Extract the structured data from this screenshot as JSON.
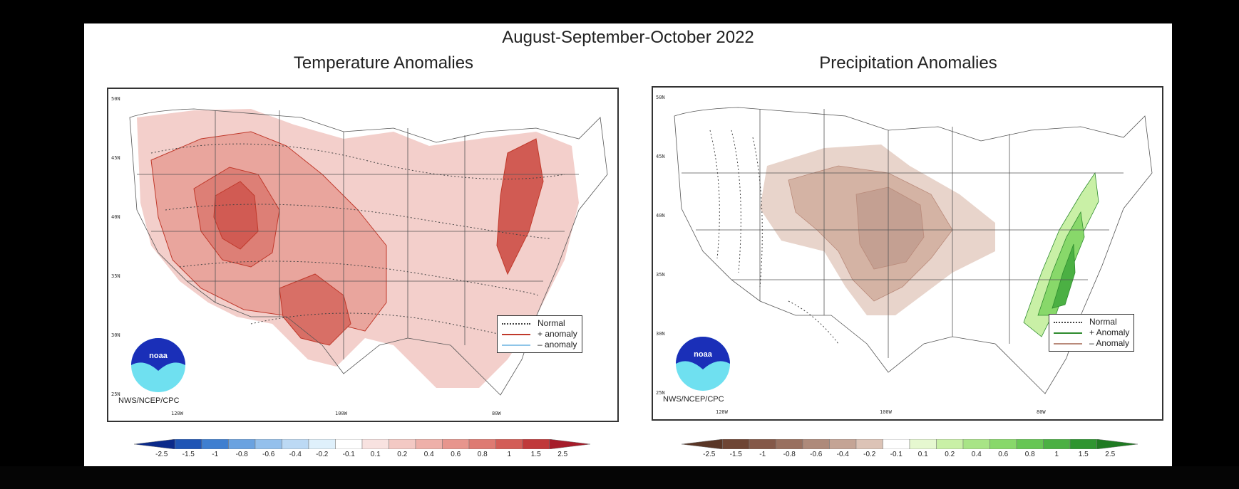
{
  "main_title": "August-September-October 2022",
  "panels": [
    {
      "title": "Temperature Anomalies",
      "legend": {
        "items": [
          {
            "label": "Normal",
            "style": "dotted",
            "color": "#444444"
          },
          {
            "label": "+ anomaly",
            "style": "solid",
            "color": "#c0392b"
          },
          {
            "label": "– anomaly",
            "style": "solid",
            "color": "#8ec5e8"
          }
        ]
      },
      "credit": "NWS/NCEP/CPC",
      "latitudes": [
        "50N",
        "45N",
        "40N",
        "35N",
        "30N",
        "25N"
      ],
      "longitudes": [
        "120W",
        "100W",
        "80W"
      ],
      "colorbar": {
        "labels": [
          "-2.5",
          "-1.5",
          "-1",
          "-0.8",
          "-0.6",
          "-0.4",
          "-0.2",
          "-0.1",
          "0.1",
          "0.2",
          "0.4",
          "0.6",
          "0.8",
          "1",
          "1.5",
          "2.5"
        ],
        "colors": [
          "#0b2a8a",
          "#1f55b5",
          "#3f7fd0",
          "#6aa2e0",
          "#94c0ec",
          "#bcd9f4",
          "#dff0fb",
          "#ffffff",
          "#f8e2e0",
          "#f3c9c4",
          "#eeb0a9",
          "#e7958d",
          "#de7a72",
          "#d35d57",
          "#c0393a",
          "#a61c2a"
        ]
      }
    },
    {
      "title": "Precipitation Anomalies",
      "legend": {
        "items": [
          {
            "label": "Normal",
            "style": "dotted",
            "color": "#444444"
          },
          {
            "label": "+ Anomaly",
            "style": "solid",
            "color": "#2e8b2e"
          },
          {
            "label": "– Anomaly",
            "style": "solid",
            "color": "#b98a7a"
          }
        ]
      },
      "credit": "NWS/NCEP/CPC",
      "latitudes": [
        "50N",
        "45N",
        "40N",
        "35N",
        "30N",
        "25N"
      ],
      "longitudes": [
        "120W",
        "100W",
        "80W"
      ],
      "colorbar": {
        "labels": [
          "-2.5",
          "-1.5",
          "-1",
          "-0.8",
          "-0.6",
          "-0.4",
          "-0.2",
          "-0.1",
          "0.1",
          "0.2",
          "0.4",
          "0.6",
          "0.8",
          "1",
          "1.5",
          "2.5"
        ],
        "colors": [
          "#5a3626",
          "#6e4534",
          "#845848",
          "#99705f",
          "#ae8a7a",
          "#c4a495",
          "#dcc3b6",
          "#ffffff",
          "#e6f8d0",
          "#c9f0a6",
          "#a8e486",
          "#88d86a",
          "#67c654",
          "#4bb043",
          "#2f9530",
          "#1f7a22"
        ]
      }
    }
  ]
}
